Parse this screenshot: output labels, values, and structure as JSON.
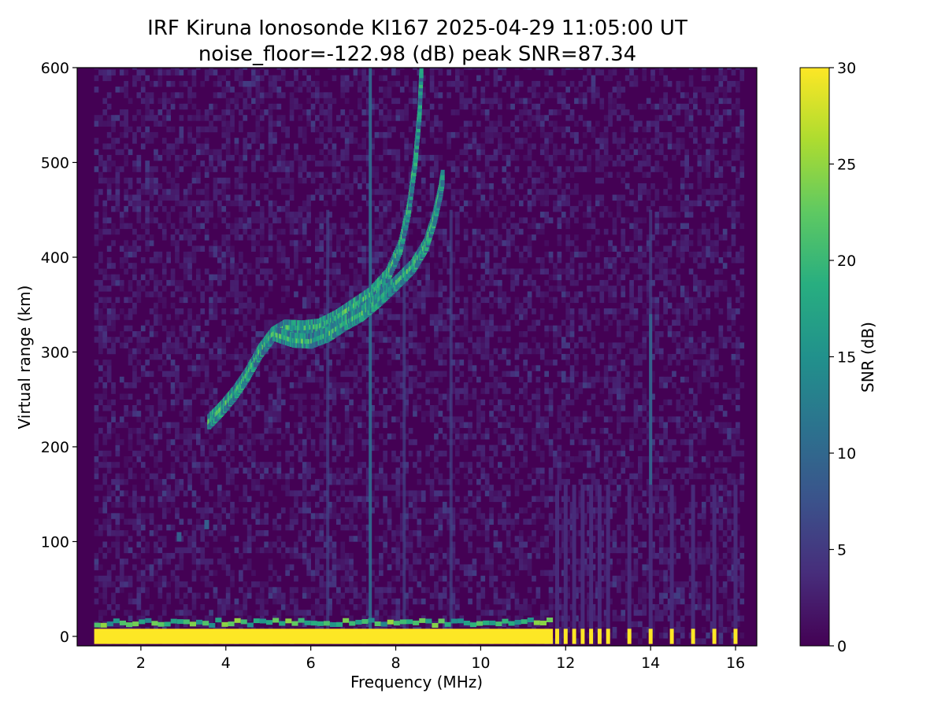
{
  "chart_data": {
    "type": "heatmap",
    "title": "IRF Kiruna Ionosonde KI167 2025-04-29 11:05:00  UT",
    "subtitle": "noise_floor=-122.98 (dB) peak SNR=87.34",
    "xlabel": "Frequency (MHz)",
    "ylabel": "Virtual range (km)",
    "xlim": [
      0.5,
      16.5
    ],
    "ylim": [
      -10,
      600
    ],
    "x_ticks": [
      2,
      4,
      6,
      8,
      10,
      12,
      14,
      16
    ],
    "y_ticks": [
      0,
      100,
      200,
      300,
      400,
      500,
      600
    ],
    "colorbar": {
      "label": "SNR (dB)",
      "range": [
        0,
        30
      ],
      "ticks": [
        0,
        5,
        10,
        15,
        20,
        25,
        30
      ],
      "colormap": "viridis"
    },
    "sweep_frequency_range_mhz": [
      0.9,
      16.1
    ],
    "ground_clutter_band_km": [
      -8,
      8
    ],
    "traces": [
      {
        "points": [
          [
            3.6,
            226
          ],
          [
            3.9,
            240
          ],
          [
            4.2,
            256
          ],
          [
            4.5,
            276
          ],
          [
            4.8,
            300
          ],
          [
            5.1,
            318
          ],
          [
            5.4,
            326
          ],
          [
            5.8,
            325
          ],
          [
            6.2,
            327
          ],
          [
            6.6,
            336
          ],
          [
            7.0,
            348
          ],
          [
            7.4,
            360
          ],
          [
            7.8,
            380
          ],
          [
            8.1,
            410
          ],
          [
            8.3,
            450
          ],
          [
            8.45,
            500
          ],
          [
            8.55,
            550
          ],
          [
            8.6,
            600
          ]
        ]
      },
      {
        "points": [
          [
            5.2,
            318
          ],
          [
            5.6,
            312
          ],
          [
            6.0,
            311
          ],
          [
            6.4,
            318
          ],
          [
            6.8,
            330
          ],
          [
            7.2,
            340
          ],
          [
            7.6,
            355
          ],
          [
            8.0,
            372
          ],
          [
            8.4,
            390
          ],
          [
            8.7,
            412
          ],
          [
            8.9,
            440
          ],
          [
            9.05,
            470
          ],
          [
            9.1,
            485
          ]
        ]
      }
    ],
    "interference_lines_mhz": [
      6.4,
      7.4,
      8.2,
      9.3,
      14.0
    ],
    "isolated_echoes": [
      [
        3.55,
        118
      ],
      [
        2.9,
        105
      ]
    ],
    "discrete_frequency_columns_mhz": [
      11.8,
      12.0,
      12.2,
      12.4,
      12.6,
      12.8,
      13.0,
      13.5,
      14.0,
      14.5,
      15.0,
      15.5,
      16.0
    ]
  }
}
